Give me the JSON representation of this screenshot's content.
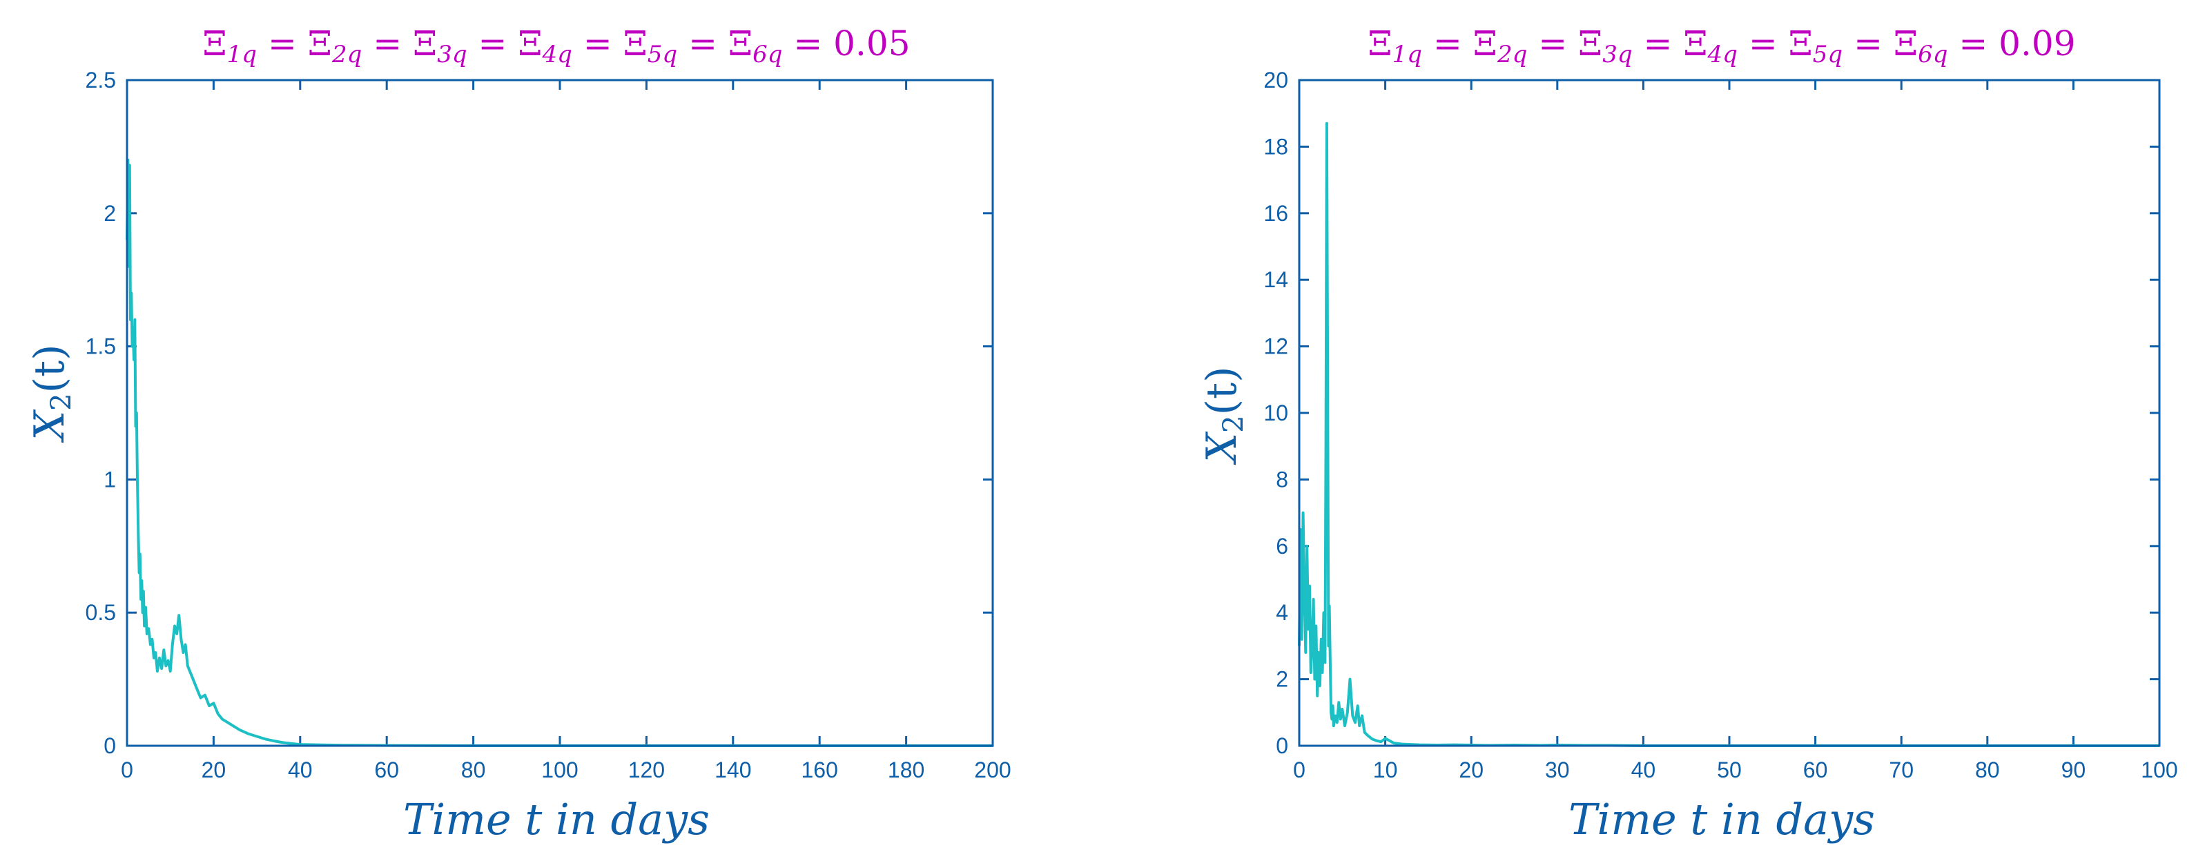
{
  "colors": {
    "axis": "#0f5fa8",
    "series": "#1cbfc4",
    "title": "#c000c0"
  },
  "chart_data": [
    {
      "type": "line",
      "title": "Ξ1q = Ξ2q = Ξ3q = Ξ4q = Ξ5q = Ξ6q = 0.05",
      "title_parts": {
        "symbol": "Ξ",
        "subscripts": [
          "1q",
          "2q",
          "3q",
          "4q",
          "5q",
          "6q"
        ],
        "value": "0.05"
      },
      "xlabel": "Time t in days",
      "ylabel": "X2(t)",
      "ylabel_parts": {
        "base": "X",
        "sub": "2",
        "rest": "(t)"
      },
      "xlim": [
        0,
        200
      ],
      "ylim": [
        0,
        2.5
      ],
      "xticks": [
        0,
        20,
        40,
        60,
        80,
        100,
        120,
        140,
        160,
        180,
        200
      ],
      "yticks": [
        0,
        0.5,
        1,
        1.5,
        2,
        2.5
      ],
      "ytick_labels": [
        "0",
        "0.5",
        "1",
        "1.5",
        "2",
        "2.5"
      ],
      "grid": false,
      "series": [
        {
          "x": [
            0,
            0.2,
            0.4,
            0.6,
            0.8,
            1.0,
            1.2,
            1.4,
            1.6,
            1.8,
            2.0,
            2.2,
            2.4,
            2.6,
            2.8,
            3.0,
            3.2,
            3.4,
            3.6,
            3.8,
            4.0,
            4.3,
            4.6,
            5.0,
            5.4,
            5.8,
            6.2,
            6.6,
            7.0,
            7.5,
            8.0,
            8.5,
            9.0,
            9.5,
            10.0,
            10.5,
            11.0,
            11.5,
            12.0,
            12.5,
            13.0,
            13.5,
            14.0,
            15.0,
            16.0,
            17.0,
            18.0,
            19.0,
            20.0,
            21.0,
            22.0,
            24.0,
            26.0,
            28.0,
            30.0,
            32.0,
            34.0,
            36.0,
            38.0,
            40.0,
            45.0,
            50.0,
            60.0,
            80.0,
            100.0,
            140.0,
            200.0
          ],
          "y": [
            1.9,
            2.2,
            1.8,
            2.18,
            1.6,
            1.7,
            1.5,
            1.55,
            1.45,
            1.6,
            1.2,
            1.25,
            1.0,
            0.8,
            0.65,
            0.72,
            0.55,
            0.62,
            0.5,
            0.58,
            0.45,
            0.52,
            0.42,
            0.44,
            0.38,
            0.4,
            0.33,
            0.35,
            0.28,
            0.33,
            0.29,
            0.36,
            0.3,
            0.32,
            0.28,
            0.38,
            0.45,
            0.42,
            0.49,
            0.4,
            0.35,
            0.38,
            0.3,
            0.26,
            0.22,
            0.18,
            0.19,
            0.15,
            0.16,
            0.12,
            0.1,
            0.08,
            0.06,
            0.045,
            0.035,
            0.025,
            0.018,
            0.012,
            0.008,
            0.005,
            0.003,
            0.002,
            0.001,
            0.0,
            0.0,
            0.0,
            0.0
          ]
        }
      ]
    },
    {
      "type": "line",
      "title": "Ξ1q = Ξ2q = Ξ3q = Ξ4q = Ξ5q = Ξ6q = 0.09",
      "title_parts": {
        "symbol": "Ξ",
        "subscripts": [
          "1q",
          "2q",
          "3q",
          "4q",
          "5q",
          "6q"
        ],
        "value": "0.09"
      },
      "xlabel": "Time t in days",
      "ylabel": "X2(t)",
      "ylabel_parts": {
        "base": "X",
        "sub": "2",
        "rest": "(t)"
      },
      "xlim": [
        0,
        100
      ],
      "ylim": [
        0,
        20
      ],
      "xticks": [
        0,
        10,
        20,
        30,
        40,
        50,
        60,
        70,
        80,
        90,
        100
      ],
      "yticks": [
        0,
        2,
        4,
        6,
        8,
        10,
        12,
        14,
        16,
        18,
        20
      ],
      "ytick_labels": [
        "0",
        "2",
        "4",
        "6",
        "8",
        "10",
        "12",
        "14",
        "16",
        "18",
        "20"
      ],
      "grid": false,
      "series": [
        {
          "x": [
            0,
            0.15,
            0.3,
            0.45,
            0.6,
            0.75,
            0.9,
            1.05,
            1.2,
            1.35,
            1.5,
            1.65,
            1.8,
            1.95,
            2.1,
            2.25,
            2.4,
            2.55,
            2.7,
            2.85,
            3.0,
            3.1,
            3.2,
            3.3,
            3.4,
            3.5,
            3.6,
            3.7,
            3.8,
            3.9,
            4.0,
            4.2,
            4.4,
            4.6,
            4.8,
            5.0,
            5.3,
            5.6,
            5.9,
            6.2,
            6.5,
            6.8,
            7.0,
            7.3,
            7.6,
            8.0,
            8.5,
            9.0,
            9.5,
            10.0,
            11.0,
            12.0,
            14.0,
            16.0,
            18.0,
            20.0,
            22.0,
            25.0,
            28.0,
            30.0,
            33.0,
            36.0,
            40.0,
            50.0,
            60.0,
            80.0,
            100.0
          ],
          "y": [
            3.0,
            6.5,
            3.2,
            7.0,
            4.5,
            2.8,
            6.0,
            3.5,
            4.8,
            2.2,
            3.0,
            4.4,
            2.0,
            3.6,
            1.5,
            2.8,
            1.8,
            3.2,
            2.2,
            4.0,
            2.5,
            9.0,
            18.7,
            11.5,
            3.0,
            4.2,
            2.5,
            1.0,
            0.8,
            1.2,
            0.6,
            0.9,
            0.7,
            1.3,
            0.8,
            1.1,
            0.6,
            1.0,
            2.0,
            0.9,
            0.7,
            1.2,
            0.6,
            0.9,
            0.4,
            0.3,
            0.2,
            0.15,
            0.12,
            0.22,
            0.08,
            0.05,
            0.03,
            0.02,
            0.03,
            0.02,
            0.01,
            0.02,
            0.01,
            0.02,
            0.01,
            0.01,
            0.0,
            0.0,
            0.0,
            0.0,
            0.0
          ]
        }
      ]
    }
  ]
}
